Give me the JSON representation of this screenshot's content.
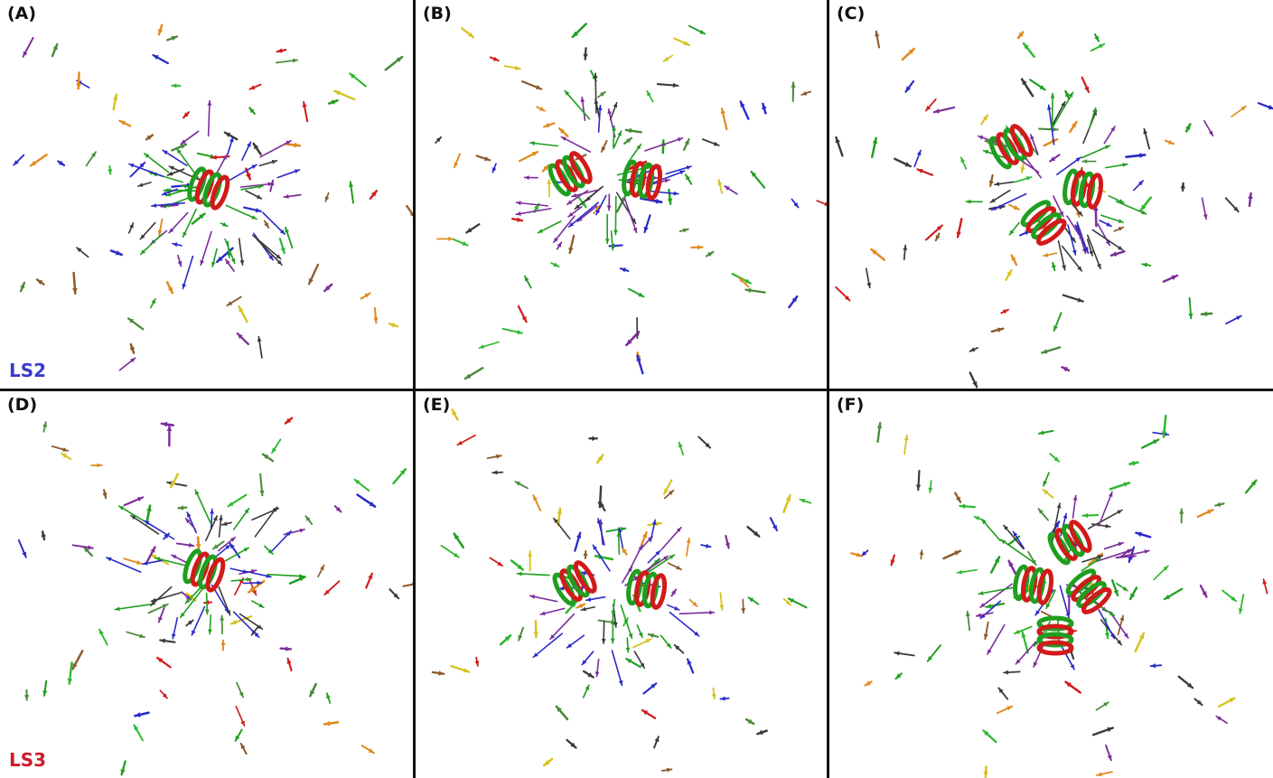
{
  "figure": {
    "panels": [
      {
        "id": "A",
        "label": "(A)",
        "side_label": "LS2",
        "side_color": "#3a3ad0",
        "helices": 1
      },
      {
        "id": "B",
        "label": "(B)",
        "side_label": "",
        "side_color": "",
        "helices": 2
      },
      {
        "id": "C",
        "label": "(C)",
        "side_label": "",
        "side_color": "",
        "helices": 3
      },
      {
        "id": "D",
        "label": "(D)",
        "side_label": "LS3",
        "side_color": "#cc1b2b",
        "helices": 1
      },
      {
        "id": "E",
        "label": "(E)",
        "side_label": "",
        "side_color": "",
        "helices": 2
      },
      {
        "id": "F",
        "label": "(F)",
        "side_label": "",
        "side_color": "",
        "helices": 4
      }
    ],
    "colors": {
      "helix_green": "#1f9e1f",
      "helix_red": "#d11a1a",
      "arrows": [
        "#1f9e1f",
        "#2db82d",
        "#d11a1a",
        "#7b2d9b",
        "#2a2ac8",
        "#8b5a2b",
        "#e08a1e",
        "#d6c21e",
        "#3a3a3a",
        "#4a8a3a"
      ]
    }
  }
}
